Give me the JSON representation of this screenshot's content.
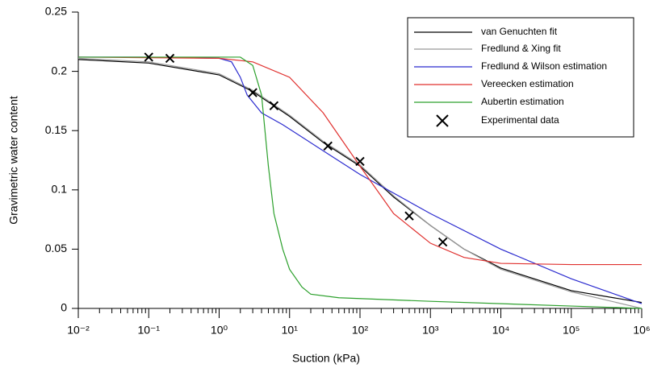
{
  "chart_data": {
    "type": "line",
    "xlabel": "Suction (kPa)",
    "ylabel": "Gravimetric water content",
    "xscale": "log",
    "minor_ticks": true,
    "grid": false,
    "legend": "upper right",
    "xlim": [
      0.01,
      1000000
    ],
    "xticks": [
      {
        "value": 0.01,
        "label": "10⁻²"
      },
      {
        "value": 0.1,
        "label": "10⁻¹"
      },
      {
        "value": 1,
        "label": "10⁰"
      },
      {
        "value": 10,
        "label": "10¹"
      },
      {
        "value": 100,
        "label": "10²"
      },
      {
        "value": 1000,
        "label": "10³"
      },
      {
        "value": 10000,
        "label": "10⁴"
      },
      {
        "value": 100000,
        "label": "10⁵"
      },
      {
        "value": 1000000,
        "label": "10⁶"
      }
    ],
    "ylim": [
      0,
      0.25
    ],
    "yticks": [
      0,
      0.05,
      0.1,
      0.15,
      0.2,
      0.25
    ],
    "series": [
      {
        "name": "van Genuchten fit",
        "color": "#000000",
        "style": "line",
        "x": [
          0.01,
          0.1,
          1,
          3,
          10,
          30,
          100,
          300,
          1000,
          3000,
          10000,
          100000,
          1000000
        ],
        "values": [
          0.21,
          0.207,
          0.197,
          0.183,
          0.162,
          0.14,
          0.12,
          0.094,
          0.07,
          0.05,
          0.034,
          0.015,
          0.005
        ]
      },
      {
        "name": "Fredlund & Xing fit",
        "color": "#999999",
        "style": "line",
        "x": [
          0.01,
          0.1,
          1,
          3,
          10,
          30,
          100,
          300,
          1000,
          3000,
          10000,
          100000,
          1000000
        ],
        "values": [
          0.211,
          0.208,
          0.198,
          0.184,
          0.163,
          0.141,
          0.121,
          0.095,
          0.07,
          0.05,
          0.033,
          0.014,
          0.0
        ]
      },
      {
        "name": "Fredlund & Wilson estimation",
        "color": "#2b2bcf",
        "style": "line",
        "x": [
          0.01,
          0.1,
          1,
          1.5,
          2,
          2.5,
          4,
          8,
          30,
          100,
          1000,
          10000,
          100000,
          1000000
        ],
        "values": [
          0.212,
          0.212,
          0.211,
          0.208,
          0.195,
          0.18,
          0.165,
          0.155,
          0.133,
          0.113,
          0.08,
          0.05,
          0.025,
          0.004
        ]
      },
      {
        "name": "Vereecken estimation",
        "color": "#e0302e",
        "style": "line",
        "x": [
          0.01,
          1,
          3,
          10,
          30,
          100,
          300,
          1000,
          3000,
          10000,
          100000,
          1000000
        ],
        "values": [
          0.212,
          0.211,
          0.208,
          0.195,
          0.165,
          0.12,
          0.08,
          0.055,
          0.043,
          0.038,
          0.037,
          0.037
        ]
      },
      {
        "name": "Aubertin estimation",
        "color": "#2ca02c",
        "style": "line",
        "x": [
          0.01,
          2,
          3,
          4,
          5,
          6,
          8,
          10,
          15,
          20,
          50,
          1000,
          100000,
          1000000
        ],
        "values": [
          0.212,
          0.212,
          0.205,
          0.18,
          0.12,
          0.08,
          0.05,
          0.033,
          0.018,
          0.012,
          0.009,
          0.006,
          0.002,
          0.0
        ]
      },
      {
        "name": "Experimental data",
        "color": "#000000",
        "style": "marker",
        "x": [
          0.1,
          0.2,
          3,
          6,
          35,
          100,
          500,
          1500
        ],
        "values": [
          0.212,
          0.211,
          0.182,
          0.171,
          0.137,
          0.124,
          0.078,
          0.056
        ]
      }
    ]
  }
}
